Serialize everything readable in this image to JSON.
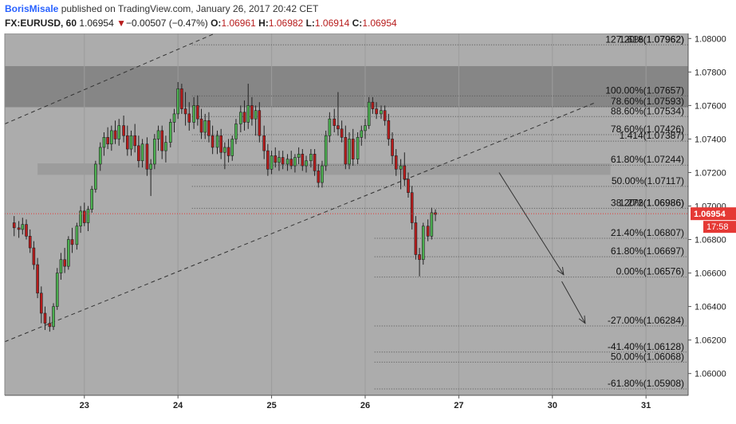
{
  "header": {
    "author": "BorisMisale",
    "published_text": "published on TradingView.com, January 26, 2017 20:42 CET",
    "symbol": "FX:EURUSD, 60",
    "last_price": "1.06954",
    "change_arrow": "▼",
    "change": "−0.00507 (−0.47%)",
    "open_label": "O:",
    "open": "1.06961",
    "high_label": "H:",
    "high": "1.06982",
    "low_label": "L:",
    "low": "1.06914",
    "close_label": "C:",
    "close": "1.06954"
  },
  "price_scale": {
    "ticks": [
      "1.08000",
      "1.07800",
      "1.07600",
      "1.07400",
      "1.07200",
      "1.07000",
      "1.06800",
      "1.06600",
      "1.06400",
      "1.06200",
      "1.06000"
    ],
    "last_price_badge": "1.06954",
    "countdown_badge": "17:58"
  },
  "time_scale": {
    "ticks": [
      {
        "label": "23",
        "day": 1
      },
      {
        "label": "24",
        "day": 2
      },
      {
        "label": "25",
        "day": 3
      },
      {
        "label": "26",
        "day": 4
      },
      {
        "label": "27",
        "day": 5
      },
      {
        "label": "30",
        "day": 6
      },
      {
        "label": "31",
        "day": 7
      }
    ]
  },
  "chart_data": {
    "type": "candlestick",
    "symbol": "FX:EURUSD",
    "interval": "60",
    "ylim": [
      1.0587,
      1.0803
    ],
    "xlim_days": [
      0.15,
      7.45
    ],
    "colors": {
      "up": "#4caf50",
      "down": "#b71c1c",
      "background": "#acacac",
      "zone": "#7f7f7f",
      "price_badge": "#e53935"
    },
    "fib_levels_upper": [
      {
        "label": "127.20%(1.07962)",
        "price": 1.07962
      },
      {
        "label": "1.618(1.07962)",
        "price": 1.07962
      },
      {
        "label": "100.00%(1.07657)",
        "price": 1.07657
      },
      {
        "label": "78.60%(1.07593)",
        "price": 1.07593
      },
      {
        "label": "88.60%(1.07534)",
        "price": 1.07534
      },
      {
        "label": "78.60%(1.07426)",
        "price": 1.07426
      },
      {
        "label": "1.414(1.07387)",
        "price": 1.07387
      },
      {
        "label": "61.80%(1.07244)",
        "price": 1.07244
      },
      {
        "label": "50.00%(1.07117)",
        "price": 1.07117
      },
      {
        "label": "38.20%(1.06986)",
        "price": 1.06986
      },
      {
        "label": "1.272(1.06986)",
        "price": 1.06986
      }
    ],
    "fib_levels_lower": [
      {
        "label": "21.40%(1.06807)",
        "price": 1.06807
      },
      {
        "label": "61.80%(1.06697)",
        "price": 1.06697
      },
      {
        "label": "0.00%(1.06576)",
        "price": 1.06576
      },
      {
        "label": "-27.00%(1.06284)",
        "price": 1.06284
      },
      {
        "label": "-41.40%(1.06128)",
        "price": 1.06128
      },
      {
        "label": "50.00%(1.06068)",
        "price": 1.06068
      },
      {
        "label": "-61.80%(1.05908)",
        "price": 1.05908
      }
    ],
    "resistance_zone": {
      "top": 1.07835,
      "bottom": 1.0759
    },
    "support_zone": {
      "top": 1.07245,
      "bottom": 1.07205,
      "day_start": 0.5,
      "day_end": 6.62
    },
    "channel_upper": {
      "p1": {
        "day": 0.15,
        "price": 1.0749
      },
      "p2": {
        "day": 3.93,
        "price": 1.084
      }
    },
    "channel_lower": {
      "p1": {
        "day": 0.15,
        "price": 1.0619
      },
      "p2": {
        "day": 6.47,
        "price": 1.0762
      }
    },
    "arrows": [
      {
        "from": {
          "day": 5.43,
          "price": 1.072
        },
        "to": {
          "day": 6.12,
          "price": 1.0659
        }
      },
      {
        "from": {
          "day": 6.1,
          "price": 1.0655
        },
        "to": {
          "day": 6.35,
          "price": 1.063
        }
      }
    ],
    "candles": [
      {
        "d": 0.25,
        "o": 1.069,
        "h": 1.0694,
        "l": 1.0682,
        "c": 1.0687
      },
      {
        "d": 0.3,
        "o": 1.0687,
        "h": 1.0691,
        "l": 1.0681,
        "c": 1.0686
      },
      {
        "d": 0.34,
        "o": 1.0686,
        "h": 1.0693,
        "l": 1.0683,
        "c": 1.0689
      },
      {
        "d": 0.38,
        "o": 1.0689,
        "h": 1.0692,
        "l": 1.068,
        "c": 1.0682
      },
      {
        "d": 0.42,
        "o": 1.0682,
        "h": 1.0686,
        "l": 1.0672,
        "c": 1.0675
      },
      {
        "d": 0.46,
        "o": 1.0675,
        "h": 1.0679,
        "l": 1.0662,
        "c": 1.0665
      },
      {
        "d": 0.5,
        "o": 1.0665,
        "h": 1.0669,
        "l": 1.0645,
        "c": 1.0648
      },
      {
        "d": 0.54,
        "o": 1.0648,
        "h": 1.0652,
        "l": 1.063,
        "c": 1.0636
      },
      {
        "d": 0.58,
        "o": 1.0636,
        "h": 1.064,
        "l": 1.0626,
        "c": 1.063
      },
      {
        "d": 0.63,
        "o": 1.063,
        "h": 1.0634,
        "l": 1.0625,
        "c": 1.0628
      },
      {
        "d": 0.67,
        "o": 1.0628,
        "h": 1.0642,
        "l": 1.0626,
        "c": 1.064
      },
      {
        "d": 0.71,
        "o": 1.064,
        "h": 1.0663,
        "l": 1.0638,
        "c": 1.066
      },
      {
        "d": 0.75,
        "o": 1.066,
        "h": 1.0672,
        "l": 1.0656,
        "c": 1.0668
      },
      {
        "d": 0.79,
        "o": 1.0668,
        "h": 1.0675,
        "l": 1.066,
        "c": 1.0664
      },
      {
        "d": 0.83,
        "o": 1.0664,
        "h": 1.0682,
        "l": 1.0662,
        "c": 1.068
      },
      {
        "d": 0.87,
        "o": 1.068,
        "h": 1.0687,
        "l": 1.0672,
        "c": 1.0677
      },
      {
        "d": 0.92,
        "o": 1.0677,
        "h": 1.069,
        "l": 1.0674,
        "c": 1.0688
      },
      {
        "d": 0.96,
        "o": 1.0688,
        "h": 1.07,
        "l": 1.0684,
        "c": 1.0697
      },
      {
        "d": 1.0,
        "o": 1.0697,
        "h": 1.0702,
        "l": 1.0688,
        "c": 1.069
      },
      {
        "d": 1.04,
        "o": 1.069,
        "h": 1.07,
        "l": 1.0685,
        "c": 1.0698
      },
      {
        "d": 1.08,
        "o": 1.0698,
        "h": 1.0712,
        "l": 1.0696,
        "c": 1.071
      },
      {
        "d": 1.12,
        "o": 1.071,
        "h": 1.0727,
        "l": 1.0708,
        "c": 1.0725
      },
      {
        "d": 1.17,
        "o": 1.0725,
        "h": 1.0738,
        "l": 1.0721,
        "c": 1.0735
      },
      {
        "d": 1.21,
        "o": 1.0735,
        "h": 1.0744,
        "l": 1.073,
        "c": 1.0741
      },
      {
        "d": 1.25,
        "o": 1.0741,
        "h": 1.0747,
        "l": 1.0734,
        "c": 1.0737
      },
      {
        "d": 1.29,
        "o": 1.0737,
        "h": 1.0748,
        "l": 1.0733,
        "c": 1.0745
      },
      {
        "d": 1.33,
        "o": 1.0745,
        "h": 1.0751,
        "l": 1.0737,
        "c": 1.074
      },
      {
        "d": 1.37,
        "o": 1.074,
        "h": 1.0752,
        "l": 1.0736,
        "c": 1.0748
      },
      {
        "d": 1.42,
        "o": 1.0748,
        "h": 1.0754,
        "l": 1.0738,
        "c": 1.0742
      },
      {
        "d": 1.46,
        "o": 1.0742,
        "h": 1.0748,
        "l": 1.073,
        "c": 1.0734
      },
      {
        "d": 1.5,
        "o": 1.0734,
        "h": 1.0745,
        "l": 1.073,
        "c": 1.0742
      },
      {
        "d": 1.54,
        "o": 1.0742,
        "h": 1.0749,
        "l": 1.0732,
        "c": 1.0736
      },
      {
        "d": 1.58,
        "o": 1.0736,
        "h": 1.0742,
        "l": 1.0723,
        "c": 1.0727
      },
      {
        "d": 1.62,
        "o": 1.0727,
        "h": 1.074,
        "l": 1.0723,
        "c": 1.0737
      },
      {
        "d": 1.67,
        "o": 1.0737,
        "h": 1.0741,
        "l": 1.0718,
        "c": 1.0722
      },
      {
        "d": 1.71,
        "o": 1.0722,
        "h": 1.0728,
        "l": 1.0706,
        "c": 1.0725
      },
      {
        "d": 1.75,
        "o": 1.0725,
        "h": 1.0743,
        "l": 1.0722,
        "c": 1.074
      },
      {
        "d": 1.79,
        "o": 1.074,
        "h": 1.0748,
        "l": 1.0733,
        "c": 1.0745
      },
      {
        "d": 1.83,
        "o": 1.0745,
        "h": 1.0748,
        "l": 1.0728,
        "c": 1.0733
      },
      {
        "d": 1.87,
        "o": 1.0733,
        "h": 1.0742,
        "l": 1.0726,
        "c": 1.0738
      },
      {
        "d": 1.92,
        "o": 1.0738,
        "h": 1.0752,
        "l": 1.0735,
        "c": 1.075
      },
      {
        "d": 1.96,
        "o": 1.075,
        "h": 1.0758,
        "l": 1.0744,
        "c": 1.0755
      },
      {
        "d": 2.0,
        "o": 1.0755,
        "h": 1.0774,
        "l": 1.0752,
        "c": 1.077
      },
      {
        "d": 2.04,
        "o": 1.077,
        "h": 1.0773,
        "l": 1.0755,
        "c": 1.0758
      },
      {
        "d": 2.08,
        "o": 1.0758,
        "h": 1.0768,
        "l": 1.0748,
        "c": 1.0755
      },
      {
        "d": 2.12,
        "o": 1.0755,
        "h": 1.0762,
        "l": 1.0745,
        "c": 1.075
      },
      {
        "d": 2.17,
        "o": 1.075,
        "h": 1.0765,
        "l": 1.0746,
        "c": 1.076
      },
      {
        "d": 2.21,
        "o": 1.076,
        "h": 1.0766,
        "l": 1.0748,
        "c": 1.0752
      },
      {
        "d": 2.25,
        "o": 1.0752,
        "h": 1.0758,
        "l": 1.074,
        "c": 1.0744
      },
      {
        "d": 2.29,
        "o": 1.0744,
        "h": 1.0755,
        "l": 1.074,
        "c": 1.0751
      },
      {
        "d": 2.33,
        "o": 1.0751,
        "h": 1.0756,
        "l": 1.0738,
        "c": 1.0742
      },
      {
        "d": 2.37,
        "o": 1.0742,
        "h": 1.0748,
        "l": 1.0731,
        "c": 1.0735
      },
      {
        "d": 2.42,
        "o": 1.0735,
        "h": 1.0745,
        "l": 1.0731,
        "c": 1.0742
      },
      {
        "d": 2.46,
        "o": 1.0742,
        "h": 1.0746,
        "l": 1.0728,
        "c": 1.0732
      },
      {
        "d": 2.5,
        "o": 1.0732,
        "h": 1.0738,
        "l": 1.0722,
        "c": 1.0735
      },
      {
        "d": 2.54,
        "o": 1.0735,
        "h": 1.074,
        "l": 1.0726,
        "c": 1.073
      },
      {
        "d": 2.58,
        "o": 1.073,
        "h": 1.0742,
        "l": 1.0727,
        "c": 1.074
      },
      {
        "d": 2.62,
        "o": 1.074,
        "h": 1.0752,
        "l": 1.0737,
        "c": 1.0749
      },
      {
        "d": 2.67,
        "o": 1.0749,
        "h": 1.076,
        "l": 1.0744,
        "c": 1.0756
      },
      {
        "d": 2.71,
        "o": 1.0756,
        "h": 1.0763,
        "l": 1.0745,
        "c": 1.075
      },
      {
        "d": 2.75,
        "o": 1.075,
        "h": 1.0773,
        "l": 1.0746,
        "c": 1.076
      },
      {
        "d": 2.79,
        "o": 1.076,
        "h": 1.0765,
        "l": 1.0748,
        "c": 1.0752
      },
      {
        "d": 2.83,
        "o": 1.0752,
        "h": 1.076,
        "l": 1.0742,
        "c": 1.0757
      },
      {
        "d": 2.87,
        "o": 1.0757,
        "h": 1.0762,
        "l": 1.0738,
        "c": 1.0742
      },
      {
        "d": 2.92,
        "o": 1.0742,
        "h": 1.0748,
        "l": 1.0728,
        "c": 1.0733
      },
      {
        "d": 2.96,
        "o": 1.0733,
        "h": 1.0737,
        "l": 1.0718,
        "c": 1.0722
      },
      {
        "d": 3.0,
        "o": 1.0722,
        "h": 1.0733,
        "l": 1.0719,
        "c": 1.073
      },
      {
        "d": 3.04,
        "o": 1.073,
        "h": 1.0735,
        "l": 1.0723,
        "c": 1.0726
      },
      {
        "d": 3.08,
        "o": 1.0726,
        "h": 1.0733,
        "l": 1.0721,
        "c": 1.0729
      },
      {
        "d": 3.12,
        "o": 1.0729,
        "h": 1.0733,
        "l": 1.0722,
        "c": 1.0725
      },
      {
        "d": 3.17,
        "o": 1.0725,
        "h": 1.0731,
        "l": 1.0721,
        "c": 1.0728
      },
      {
        "d": 3.21,
        "o": 1.0728,
        "h": 1.0733,
        "l": 1.0722,
        "c": 1.0724
      },
      {
        "d": 3.25,
        "o": 1.0724,
        "h": 1.0731,
        "l": 1.072,
        "c": 1.0729
      },
      {
        "d": 3.29,
        "o": 1.0729,
        "h": 1.0735,
        "l": 1.0725,
        "c": 1.0731
      },
      {
        "d": 3.33,
        "o": 1.0731,
        "h": 1.0734,
        "l": 1.0721,
        "c": 1.0724
      },
      {
        "d": 3.37,
        "o": 1.0724,
        "h": 1.073,
        "l": 1.072,
        "c": 1.0727
      },
      {
        "d": 3.42,
        "o": 1.0727,
        "h": 1.0734,
        "l": 1.0723,
        "c": 1.0731
      },
      {
        "d": 3.46,
        "o": 1.0731,
        "h": 1.0734,
        "l": 1.0718,
        "c": 1.0721
      },
      {
        "d": 3.5,
        "o": 1.0721,
        "h": 1.0725,
        "l": 1.0711,
        "c": 1.0714
      },
      {
        "d": 3.54,
        "o": 1.0714,
        "h": 1.0727,
        "l": 1.0711,
        "c": 1.0724
      },
      {
        "d": 3.58,
        "o": 1.0724,
        "h": 1.0745,
        "l": 1.0721,
        "c": 1.0742
      },
      {
        "d": 3.62,
        "o": 1.0742,
        "h": 1.0756,
        "l": 1.0738,
        "c": 1.0752
      },
      {
        "d": 3.67,
        "o": 1.0752,
        "h": 1.0758,
        "l": 1.0744,
        "c": 1.0748
      },
      {
        "d": 3.71,
        "o": 1.0748,
        "h": 1.0768,
        "l": 1.0742,
        "c": 1.0746
      },
      {
        "d": 3.75,
        "o": 1.0746,
        "h": 1.0751,
        "l": 1.0738,
        "c": 1.0741
      },
      {
        "d": 3.79,
        "o": 1.0741,
        "h": 1.0748,
        "l": 1.0722,
        "c": 1.0725
      },
      {
        "d": 3.83,
        "o": 1.0725,
        "h": 1.0744,
        "l": 1.0722,
        "c": 1.074
      },
      {
        "d": 3.87,
        "o": 1.074,
        "h": 1.0746,
        "l": 1.0724,
        "c": 1.0728
      },
      {
        "d": 3.92,
        "o": 1.0728,
        "h": 1.0744,
        "l": 1.0725,
        "c": 1.0741
      },
      {
        "d": 3.96,
        "o": 1.0741,
        "h": 1.0748,
        "l": 1.0736,
        "c": 1.0745
      },
      {
        "d": 4.0,
        "o": 1.0745,
        "h": 1.0752,
        "l": 1.074,
        "c": 1.0748
      },
      {
        "d": 4.04,
        "o": 1.0748,
        "h": 1.0765,
        "l": 1.0746,
        "c": 1.0762
      },
      {
        "d": 4.08,
        "o": 1.0762,
        "h": 1.0765,
        "l": 1.0755,
        "c": 1.0758
      },
      {
        "d": 4.12,
        "o": 1.0758,
        "h": 1.0762,
        "l": 1.0752,
        "c": 1.0755
      },
      {
        "d": 4.17,
        "o": 1.0755,
        "h": 1.076,
        "l": 1.0752,
        "c": 1.0757
      },
      {
        "d": 4.21,
        "o": 1.0757,
        "h": 1.076,
        "l": 1.0748,
        "c": 1.0751
      },
      {
        "d": 4.25,
        "o": 1.0751,
        "h": 1.0755,
        "l": 1.0736,
        "c": 1.074
      },
      {
        "d": 4.29,
        "o": 1.074,
        "h": 1.0744,
        "l": 1.0725,
        "c": 1.073
      },
      {
        "d": 4.33,
        "o": 1.073,
        "h": 1.0734,
        "l": 1.0718,
        "c": 1.0722
      },
      {
        "d": 4.38,
        "o": 1.0722,
        "h": 1.0728,
        "l": 1.071,
        "c": 1.0724
      },
      {
        "d": 4.42,
        "o": 1.0724,
        "h": 1.0732,
        "l": 1.0712,
        "c": 1.0716
      },
      {
        "d": 4.46,
        "o": 1.0716,
        "h": 1.072,
        "l": 1.0705,
        "c": 1.0708
      },
      {
        "d": 4.5,
        "o": 1.0708,
        "h": 1.0712,
        "l": 1.0686,
        "c": 1.069
      },
      {
        "d": 4.54,
        "o": 1.069,
        "h": 1.0694,
        "l": 1.0668,
        "c": 1.0671
      },
      {
        "d": 4.58,
        "o": 1.0671,
        "h": 1.0675,
        "l": 1.0658,
        "c": 1.0668
      },
      {
        "d": 4.62,
        "o": 1.0668,
        "h": 1.069,
        "l": 1.0665,
        "c": 1.0688
      },
      {
        "d": 4.67,
        "o": 1.0688,
        "h": 1.0692,
        "l": 1.0679,
        "c": 1.0682
      },
      {
        "d": 4.71,
        "o": 1.0682,
        "h": 1.0699,
        "l": 1.068,
        "c": 1.0696
      },
      {
        "d": 4.75,
        "o": 1.0696,
        "h": 1.0698,
        "l": 1.0691,
        "c": 1.0695
      }
    ]
  }
}
